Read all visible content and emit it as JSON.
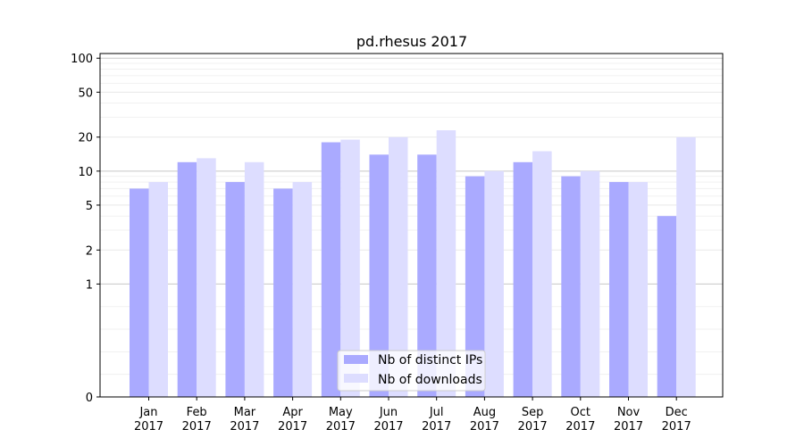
{
  "chart_data": {
    "type": "bar",
    "title": "pd.rhesus 2017",
    "xlabel": "",
    "ylabel": "",
    "y_scale": "symlog",
    "ylim": [
      0,
      110
    ],
    "yticks": [
      0,
      1,
      2,
      5,
      10,
      20,
      50,
      100
    ],
    "categories": [
      "Jan\n2017",
      "Feb\n2017",
      "Mar\n2017",
      "Apr\n2017",
      "May\n2017",
      "Jun\n2017",
      "Jul\n2017",
      "Aug\n2017",
      "Sep\n2017",
      "Oct\n2017",
      "Nov\n2017",
      "Dec\n2017"
    ],
    "series": [
      {
        "name": "Nb of distinct IPs",
        "color": "#aaaaff",
        "values": [
          7,
          12,
          8,
          7,
          18,
          14,
          14,
          9,
          12,
          9,
          8,
          4
        ]
      },
      {
        "name": "Nb of downloads",
        "color": "#ddddff",
        "values": [
          8,
          13,
          12,
          8,
          19,
          20,
          23,
          10,
          15,
          10,
          8,
          20
        ]
      }
    ],
    "grid": true,
    "legend_position": "bottom-center"
  }
}
